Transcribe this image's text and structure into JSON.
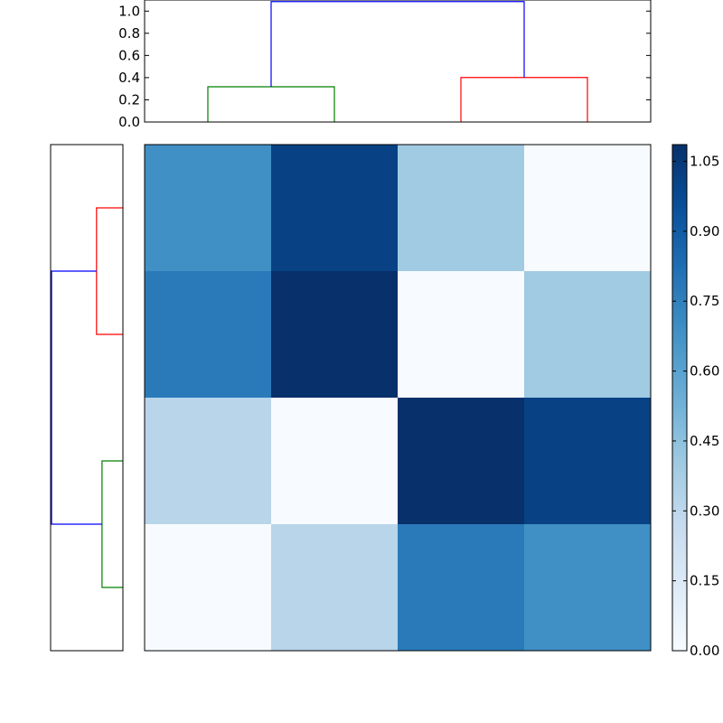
{
  "chart_data": {
    "type": "heatmap",
    "matrix": [
      [
        0.6856,
        1.0127,
        0.4016,
        0.0
      ],
      [
        0.7763,
        1.0859,
        0.0,
        0.4016
      ],
      [
        0.3177,
        0.0,
        1.0859,
        1.0127
      ],
      [
        0.0,
        0.3177,
        0.7763,
        0.6856
      ]
    ],
    "colormap": "Blues",
    "vmin": 0.0,
    "vmax": 1.0859,
    "colorbar": {
      "ticks": [
        0.0,
        0.15,
        0.3,
        0.45,
        0.6,
        0.75,
        0.9,
        1.05
      ],
      "tick_labels": [
        "0.00",
        "0.15",
        "0.30",
        "0.45",
        "0.60",
        "0.75",
        "0.90",
        "1.05"
      ]
    },
    "top_dendrogram": {
      "ylim": [
        0,
        1.1
      ],
      "yticks": [
        0.0,
        0.2,
        0.4,
        0.6,
        0.8,
        1.0
      ],
      "ytick_labels": [
        "0.0",
        "0.2",
        "0.4",
        "0.6",
        "0.8",
        "1.0"
      ],
      "links": [
        {
          "left": 0,
          "right": 1,
          "height": 0.3177,
          "color": "#008000"
        },
        {
          "left": 2,
          "right": 3,
          "height": 0.4016,
          "color": "#ff0000"
        },
        {
          "left": 0.5,
          "right": 2.5,
          "left_base": 0.3177,
          "right_base": 0.4016,
          "height": 1.0859,
          "color": "#0000ff"
        }
      ]
    },
    "left_dendrogram": {
      "xlim": [
        1.1,
        0
      ],
      "links": [
        {
          "top": 0,
          "bottom": 1,
          "height": 0.4016,
          "color": "#ff0000"
        },
        {
          "top": 2,
          "bottom": 3,
          "height": 0.3177,
          "color": "#008000"
        },
        {
          "top": 0.5,
          "bottom": 2.5,
          "top_base": 0.4016,
          "bottom_base": 0.3177,
          "height": 1.0859,
          "color": "#0000ff"
        }
      ]
    }
  }
}
